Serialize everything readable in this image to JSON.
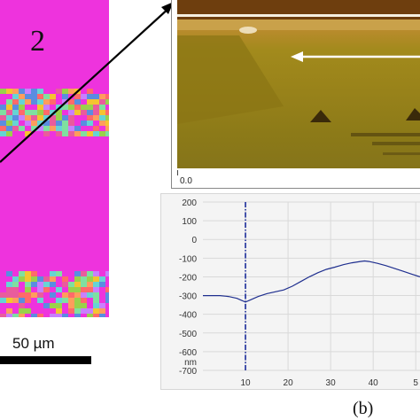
{
  "panel_a": {
    "grain_label": "2",
    "scale_label": "50 µm",
    "colors": {
      "matrix": "#ee33dd"
    }
  },
  "panel_b": {
    "afm_scale_origin": "0.0",
    "figure_label": "(b)",
    "colors": {
      "arrow": "#ffffff",
      "line_profile": "#1f2f8f",
      "marker_line": "#1b2c9a"
    }
  },
  "chart_data": {
    "type": "line",
    "title": "",
    "xlabel": "",
    "ylabel": "nm",
    "ylim": [
      -700,
      200
    ],
    "xlim": [
      0,
      51
    ],
    "x_ticks": [
      "10",
      "20",
      "30",
      "40",
      "5"
    ],
    "y_ticks": [
      "200",
      "100",
      "0",
      "-100",
      "-200",
      "-300",
      "-400",
      "-500",
      "-600",
      "-700"
    ],
    "y_unit_label": "nm",
    "grid": true,
    "marker_x": 10,
    "series": [
      {
        "x": [
          0,
          2,
          4,
          6,
          8,
          9,
          10,
          11,
          13,
          15,
          17,
          19,
          21,
          23,
          25,
          27,
          29,
          31,
          33,
          35,
          37,
          38,
          39,
          41,
          43,
          45,
          47,
          49,
          51
        ],
        "values": [
          -300,
          -300,
          -300,
          -305,
          -315,
          -325,
          -335,
          -325,
          -305,
          -290,
          -280,
          -270,
          -250,
          -225,
          -200,
          -178,
          -160,
          -148,
          -135,
          -125,
          -118,
          -115,
          -118,
          -128,
          -140,
          -155,
          -170,
          -185,
          -200
        ]
      }
    ]
  }
}
